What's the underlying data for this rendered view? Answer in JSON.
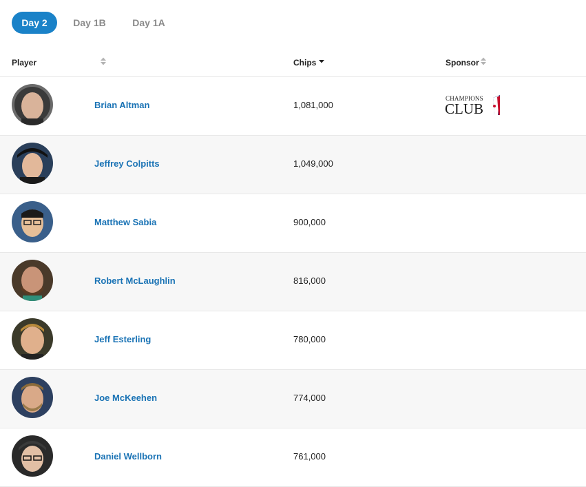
{
  "tabs": [
    {
      "label": "Day 2",
      "active": true
    },
    {
      "label": "Day 1B",
      "active": false
    },
    {
      "label": "Day 1A",
      "active": false
    }
  ],
  "table": {
    "columns": {
      "player": "Player",
      "chips": "Chips",
      "sponsor": "Sponsor"
    },
    "rows": [
      {
        "name": "Brian Altman",
        "chips": "1,081,000",
        "sponsor": "Champions Club",
        "sponsor_logo_text": [
          "CHAMPIONS",
          "CLUB"
        ]
      },
      {
        "name": "Jeffrey Colpitts",
        "chips": "1,049,000"
      },
      {
        "name": "Matthew Sabia",
        "chips": "900,000"
      },
      {
        "name": "Robert McLaughlin",
        "chips": "816,000"
      },
      {
        "name": "Jeff Esterling",
        "chips": "780,000"
      },
      {
        "name": "Joe McKeehen",
        "chips": "774,000"
      },
      {
        "name": "Daniel Wellborn",
        "chips": "761,000"
      }
    ]
  },
  "colors": {
    "accent": "#1a82c8",
    "link": "#1a73b5",
    "sponsor_red": "#c8102e"
  },
  "icons": {
    "sort_both": "sort-both-icon",
    "sort_desc": "sort-desc-icon"
  }
}
